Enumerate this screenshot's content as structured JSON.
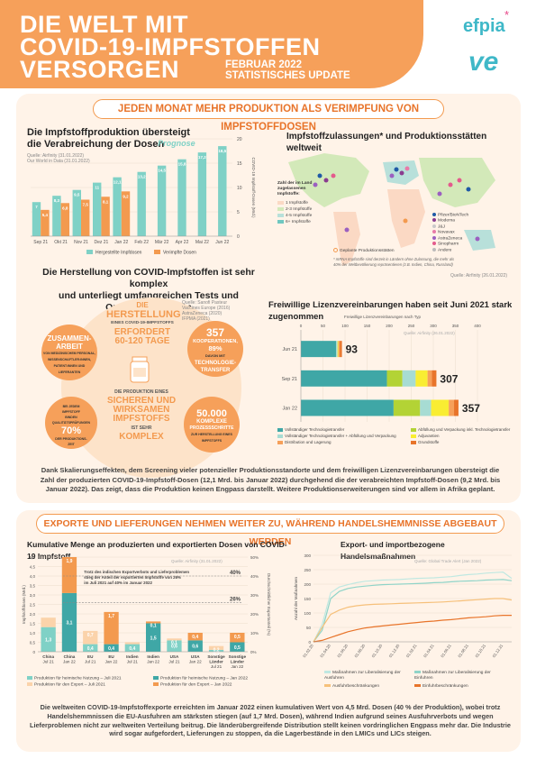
{
  "header": {
    "title_lines": [
      "DIE WELT MIT",
      "COVID-19-IMPFSTOFFEN",
      "VERSORGEN"
    ],
    "date_label": "FEBRUAR 2022",
    "update_label": "STATISTISCHES UPDATE",
    "logo_text": "efpia",
    "logo_star": "*",
    "logo_ve": "ve"
  },
  "section1": {
    "banner": "JEDEN MONAT MEHR PRODUKTION ALS VERIMPFUNG VON IMPFSTOFFDOSEN",
    "summary": "Dank Skalierungseffekten, dem Screening vieler potenzieller Produktionsstandorte und dem freiwilligen Lizenzvereinbarungen übersteigt die Zahl der produzierten COVID-19-Impfstoff-Dosen (12,1 Mrd. bis Januar 2022) durchgehend die der verabreichten Impfstoff-Dosen (9,2 Mrd. bis Januar 2022). Das zeigt, dass die Produktion keinen Engpass darstellt. Weitere Produktionserweiterungen sind vor allem in Afrika geplant."
  },
  "production_chart": {
    "title_lines": [
      "Die Impfstoffproduktion übersteigt",
      "die Verabreichung der Dosen"
    ],
    "source_lines": [
      "Quelle: Airfinity (31.01.2022)",
      "Our World in Data (31.01.2022)"
    ],
    "prognose_label": "Prognose",
    "ylabel": "COVID-19 Impfstoff-Dosen (Mrd.)",
    "legend": [
      "Hergestellte Impfdosen",
      "Verimpfte Dosen"
    ]
  },
  "complex": {
    "title_lines": [
      "Die Herstellung von COVID-Impfstoffen ist sehr komplex",
      "und unterliegt umfangreichen Tests und Qualitätskontrollen"
    ],
    "source_lines": [
      "Quelle: Sanofi Pasteur",
      "Vaccines Europe (2016)",
      "AstraZeneca (2020)",
      "IFPMA (2021)"
    ],
    "center_top": [
      "DIE",
      "HERSTELLUNG",
      "EINES COVID-19-IMPFSTOFFS",
      "ERFORDERT",
      "60-120 TAGE"
    ],
    "center_bottom": [
      "DIE PRODUKTION EINES",
      "SICHEREN UND",
      "WIRKSAMEN",
      "IMPFSTOFFS",
      "IST SEHR",
      "KOMPLEX"
    ],
    "b1": [
      "ZUSAMMEN-",
      "ARBEIT",
      "VON MEDIZINISCHEM PERSONAL,",
      "WISSENSCHAFTLER:INNEN,",
      "PATIENT:INNEN UND",
      "LIEFERANTEN"
    ],
    "b2": [
      "357",
      "KOOPERATIONEN,",
      "89%",
      "DAVON MIT",
      "TECHNOLOGIE-",
      "TRANSFER"
    ],
    "b3": [
      "BEI JEDEM",
      "IMPFSTOFF",
      "BINDEN",
      "QUALITÄTSPRÜFUNGEN",
      "70%",
      "DER PRODUKTIONS-",
      "ZEIT"
    ],
    "b4": [
      "50.000",
      "KOMPLEXE",
      "PROZESSSCHRITTE",
      "ZUR HERSTELLUNG EINES",
      "IMPFSTOFFS"
    ]
  },
  "map": {
    "title": "Impfstoffzulassungen* und Produktionsstätten weltweit",
    "legend_title": [
      "Zahl der im Land",
      "zugelassenen",
      "Impfstoffe:"
    ],
    "legend_counts": [
      "1 Impfstoffe",
      "2-3 Impfstoffe",
      "4-5 Impfstoffe",
      "6+ Impfstoffe"
    ],
    "legend_count_colors": [
      "#fbd9c4",
      "#d3e9b9",
      "#b8e0da",
      "#6fc7c0"
    ],
    "sites": [
      "Pfizer/BioNTech",
      "Moderna",
      "J&J",
      "Novavax",
      "AstraZeneca",
      "Sinopharm",
      "Andere"
    ],
    "site_colors": [
      "#1f5aa6",
      "#8a3b8f",
      "#c9c9c9",
      "#e87aa8",
      "#9b5fc0",
      "#e45a8c",
      "#bbbbbb"
    ],
    "planned_label": "Geplante Produktionsstätten",
    "note": [
      "* mRNA Impfstoffe sind derzeit in Ländern ohne Zulassung, die mehr als",
      "40% der Weltbevölkerung repräsentieren (z.B. Indien, China, Russland)"
    ],
    "source": "Quelle: Airfinity (26.01.2022)"
  },
  "licences": {
    "title": "Freiwillige Lizenzvereinbarungen haben seit Juni 2021 stark zugenommen",
    "subtitle": "Freiwillige Lizenzvereinbarungen nach Typ",
    "source": "Quelle: Airfinity (26.01.2022)",
    "legend": [
      "Vollständiger Technologietransfer",
      "Abfüllung und Verpackung inkl. Technologietransfer",
      "Vollständiger Technologietransfer + Abfüllung und Verpackung",
      "Adjuvantien",
      "Distribution und Lagerung",
      "Grundstoffe"
    ],
    "colors": [
      "#3fa7a6",
      "#b3d335",
      "#a7dcd3",
      "#f9ed32",
      "#f6a05a",
      "#e8742a"
    ]
  },
  "section2": {
    "banner": "EXPORTE UND LIEFERUNGEN NEHMEN WEITER ZU, WÄHREND HANDELSHEMMNISSE ABGEBAUT WERDEN",
    "summary": "Die weltweiten COVID-19-Impfstoffexporte erreichten im Januar 2022 einen kumulativen Wert von 4,5 Mrd. Dosen (40 % der Produktion), wobei trotz Handelshemmnissen die EU-Ausfuhren am stärksten stiegen (auf 1,7 Mrd. Dosen), während Indien aufgrund seines Ausfuhrverbots und wegen Lieferproblemen nicht zur weltweiten Verteilung beitrug. Die länderübergreifende Distribution stellt keinen vordringlichen Engpass mehr dar. Die Industrie wird sogar aufgefordert, Lieferungen zu stoppen, da die Lagerbestände in den LMICs und LICs steigen."
  },
  "export_chart": {
    "title": "Kumulative Menge an produzierten und exportierten Dosen von COVID-19 Impfstoff",
    "source": "Quelle: Airfinity (31.01.2022)",
    "ylabel_left": "Impfstoffdosen (Mrd.)",
    "ylabel_right": "Durchschnittlicher Exportanteil (%)",
    "note": [
      "Trotz des indischen Exportverbots und Lieferproblemen",
      "stieg der Anteil der exportierten Impfstoffe von 26%",
      "im Juli 2021 auf 40% im Januar 2022"
    ],
    "pct_labels": [
      "40%",
      "26%"
    ],
    "legend": [
      "Produktion für heimische Nutzung – Juli 2021",
      "Produktion für heimische Nutzung – Jan 2022",
      "Produktion für den Export – Juli 2021",
      "Produktion für den Export – Jan 2022"
    ],
    "colors": [
      "#7fd1c6",
      "#3fa7a6",
      "#fbd3aa",
      "#f39a4f"
    ]
  },
  "trade_chart": {
    "title": "Export- und importbezogene Handelsmaßnahmen",
    "source": "Quelle: Global Trade Alert (Jan 2022)",
    "ylabel": "Anzahl der Maßnahmen",
    "legend": [
      "Maßnahmen zur Liberalisierung der Ausfuhren",
      "Maßnahmen zur Liberalisierung der Einfuhren",
      "Ausfuhrbeschränkungen",
      "Einfuhrbeschränkungen"
    ],
    "colors": [
      "#bfe8e1",
      "#8fd4c8",
      "#f6c07a",
      "#e8742a"
    ]
  },
  "chart_data": [
    {
      "type": "bar",
      "title": "Die Impfstoffproduktion übersteigt die Verabreichung der Dosen",
      "categories": [
        "Sep 21",
        "Okt 21",
        "Nov 21",
        "Dez 21",
        "Jan 22",
        "Feb 22",
        "Mär 22",
        "Apr 22",
        "Mai 22",
        "Jun 22"
      ],
      "series": [
        {
          "name": "Hergestellte Impfdosen",
          "values": [
            7,
            8.3,
            9.5,
            11,
            12.1,
            13.2,
            14.5,
            15.8,
            17.2,
            18.5
          ],
          "labels": [
            "7",
            "8,3",
            "9,5",
            "11",
            "12,1",
            "13,2",
            "14,5",
            "15,8",
            "17,2",
            "18,5"
          ]
        },
        {
          "name": "Verimpfte Dosen",
          "values": [
            5.4,
            6.8,
            7.5,
            8.1,
            9.2,
            null,
            null,
            null,
            null,
            null
          ],
          "labels": [
            "5,4",
            "6,8",
            "7,5",
            "8,1",
            "9,2"
          ]
        }
      ],
      "ylabel": "COVID-19 Impfstoff-Dosen (Mrd.)",
      "ylim": [
        0,
        20
      ],
      "yticks": [
        0,
        5,
        10,
        15,
        20
      ],
      "forecast_from": "Feb 22"
    },
    {
      "type": "bar",
      "title": "Freiwillige Lizenzvereinbarungen haben seit Juni 2021 stark zugenommen",
      "orientation": "horizontal",
      "stacked": true,
      "categories": [
        "Jun 21",
        "Sep 21",
        "Jan 22"
      ],
      "totals": [
        93,
        307,
        357
      ],
      "xlim": [
        0,
        400
      ],
      "xticks": [
        0,
        50,
        100,
        150,
        200,
        250,
        300,
        350,
        400
      ],
      "series": [
        {
          "name": "Vollständiger Technologietransfer",
          "values": [
            80,
            195,
            210
          ]
        },
        {
          "name": "Abfüllung und Verpackung inkl. Technologietransfer",
          "values": [
            0,
            35,
            60
          ]
        },
        {
          "name": "Vollständiger Technologietransfer + Abfüllung und Verpackung",
          "values": [
            3,
            30,
            25
          ]
        },
        {
          "name": "Adjuvantien",
          "values": [
            2,
            27,
            40
          ]
        },
        {
          "name": "Distribution und Lagerung",
          "values": [
            3,
            10,
            12
          ]
        },
        {
          "name": "Grundstoffe",
          "values": [
            5,
            10,
            10
          ]
        }
      ]
    },
    {
      "type": "bar",
      "title": "Kumulative Menge an produzierten und exportierten Dosen von COVID-19 Impfstoff",
      "stacked": true,
      "categories": [
        "China Jul 21",
        "China Jan 22",
        "EU Jul 21",
        "EU Jan 22",
        "Indien Jul 21",
        "Indien Jan 22",
        "USA Jul 21",
        "USA Jan 22",
        "Sonstige Länder Jul 21",
        "Sonstige Länder Jan 22"
      ],
      "category_lines": [
        [
          "China",
          "Jul 21"
        ],
        [
          "China",
          "Jan 22"
        ],
        [
          "EU",
          "Jul 21"
        ],
        [
          "EU",
          "Jan 22"
        ],
        [
          "Indien",
          "Jul 21"
        ],
        [
          "Indien",
          "Jan 22"
        ],
        [
          "USA",
          "Jul 21"
        ],
        [
          "USA",
          "Jan 22"
        ],
        [
          "Sonstige",
          "Länder",
          "Jul 21"
        ],
        [
          "Sonstige",
          "Länder",
          "Jan 22"
        ]
      ],
      "series": [
        {
          "name": "Produktion für heimische Nutzung",
          "values": [
            1.3,
            3.1,
            0.4,
            0.4,
            0.4,
            1.5,
            0.6,
            0.6,
            0.1,
            0.5
          ],
          "labels": [
            "1,3",
            "3,1",
            "0,4",
            "0,4",
            "0,4",
            "1,5",
            "0,6",
            "0,6",
            "0,1",
            "0,5"
          ]
        },
        {
          "name": "Produktion für den Export",
          "values": [
            0.5,
            1.9,
            0.7,
            1.7,
            0.1,
            0.1,
            0.1,
            0.4,
            0.2,
            0.5
          ],
          "labels": [
            "",
            "1,9",
            "0,7",
            "1,7",
            "",
            "0,1",
            "0,1",
            "0,4",
            "0,2",
            "0,5"
          ]
        }
      ],
      "ylabel": "Impfstoffdosen (Mrd.)",
      "ylim": [
        0,
        5
      ],
      "yticks": [
        0,
        0.5,
        1.0,
        1.5,
        2.0,
        2.5,
        3.0,
        3.5,
        4.0,
        4.5,
        5.0
      ],
      "ytick_labels": [
        "0",
        "0,5",
        "1,0",
        "1,5",
        "2,0",
        "2,5",
        "3,0",
        "3,5",
        "4,0",
        "4,5",
        "5,0"
      ],
      "y2label": "Durchschnittlicher Exportanteil (%)",
      "y2lim": [
        0,
        50
      ],
      "y2ticks": [
        0,
        10,
        20,
        30,
        40,
        50
      ],
      "y2tick_labels": [
        "0%",
        "10%",
        "20%",
        "30%",
        "40%",
        "50%"
      ]
    },
    {
      "type": "line",
      "title": "Export- und importbezogene Handelsmaßnahmen",
      "x": [
        "01.02.20",
        "01.03.20",
        "01.04.20",
        "01.05.20",
        "01.06.20",
        "01.07.20",
        "01.08.20",
        "01.09.20",
        "01.10.20",
        "01.11.20",
        "01.12.20",
        "01.01.21",
        "01.02.21",
        "01.03.21",
        "01.04.21",
        "01.05.21",
        "01.06.21",
        "01.07.21",
        "01.08.21",
        "01.09.21",
        "01.10.21",
        "01.11.21",
        "01.12.21",
        "01.01.22"
      ],
      "x_ticks": [
        "01.02.20",
        "01.04.20",
        "01.06.20",
        "01.08.20",
        "01.10.20",
        "01.12.20",
        "01.02.21",
        "01.04.21",
        "01.06.21",
        "01.08.21",
        "01.10.21",
        "01.12.21"
      ],
      "series": [
        {
          "name": "Maßnahmen zur Liberalisierung der Ausfuhren",
          "values": [
            0,
            60,
            170,
            190,
            198,
            205,
            210,
            212,
            214,
            215,
            216,
            218,
            220,
            221,
            222,
            224,
            226,
            230,
            233,
            235,
            238,
            240,
            242,
            220
          ]
        },
        {
          "name": "Maßnahmen zur Liberalisierung der Einfuhren",
          "values": [
            0,
            40,
            150,
            175,
            185,
            190,
            193,
            196,
            198,
            199,
            200,
            201,
            202,
            203,
            205,
            206,
            208,
            210,
            211,
            212,
            214,
            215,
            216,
            212
          ]
        },
        {
          "name": "Ausfuhrbeschränkungen",
          "values": [
            0,
            50,
            95,
            110,
            120,
            125,
            128,
            130,
            131,
            132,
            133,
            134,
            135,
            136,
            137,
            138,
            140,
            142,
            144,
            146,
            148,
            150,
            150,
            145
          ]
        },
        {
          "name": "Einfuhrbeschränkungen",
          "values": [
            0,
            5,
            15,
            25,
            35,
            42,
            48,
            52,
            55,
            58,
            61,
            64,
            67,
            70,
            72,
            75,
            77,
            80,
            83,
            85,
            87,
            90,
            92,
            92
          ]
        }
      ],
      "ylabel": "Anzahl der Maßnahmen",
      "ylim": [
        0,
        300
      ],
      "yticks": [
        0,
        50,
        100,
        150,
        200,
        250,
        300
      ]
    }
  ]
}
